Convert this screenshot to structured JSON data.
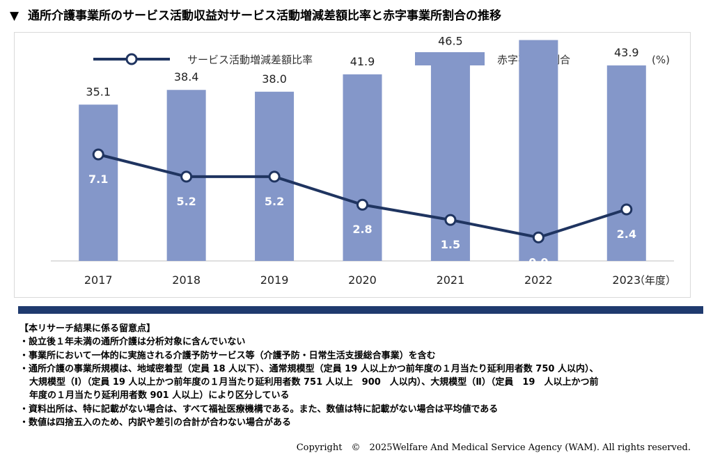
{
  "title": "通所介護事業所のサービス活動収益対サービス活動増減差額比率と赤字事業所割合の推移",
  "title_marker": "▼",
  "chart_data": {
    "type": "bar+line",
    "categories": [
      "2017",
      "2018",
      "2019",
      "2020",
      "2021",
      "2022",
      "2023"
    ],
    "x_unit": "（年度）",
    "y_unit": "(%)",
    "legend_placement": "top",
    "grid": false,
    "series": [
      {
        "name": "赤字事業所割合",
        "type": "bar",
        "values": [
          35.1,
          38.4,
          38.0,
          41.9,
          46.5,
          49.6,
          43.9
        ],
        "color": "#8497c9",
        "ylim": [
          0,
          60
        ]
      },
      {
        "name": "サービス活動増減差額比率",
        "type": "line",
        "values": [
          7.1,
          5.2,
          5.2,
          2.8,
          1.5,
          0.0,
          2.4
        ],
        "color": "#1f3460",
        "ylim": [
          -3,
          14
        ]
      }
    ],
    "colors": {
      "bar": "#8497c9",
      "line": "#1f3460",
      "line_label": "#ffffff"
    }
  },
  "divider_color": "#1f3a6e",
  "notes": {
    "heading": "【本リサーチ結果に係る留意点】",
    "items": [
      "・設立後１年未満の通所介護は分析対象に含んでいない",
      "・事業所において一体的に実施される介護予防サービス等（介護予防・日常生活支援総合事業）を含む",
      "・通所介護の事業所規模は、地域密着型（定員 18 人以下）、通常規模型（定員 19 人以上かつ前年度の１月当たり延利用者数 750 人以内）、",
      "大規模型（Ⅰ）（定員 19 人以上かつ前年度の１月当たり延利用者数 751 人以上　900　人以内）、大規模型（Ⅱ）（定員　19　人以上かつ前",
      "年度の１月当たり延利用者数 901 人以上）により区分している",
      "・資料出所は、特に記載がない場合は、すべて福祉医療機構である。また、数値は特に記載がない場合は平均値である",
      "・数値は四捨五入のため、内訳や差引の合計が合わない場合がある"
    ]
  },
  "copyright": "Copyright　©　2025Welfare And Medical Service Agency (WAM). All rights reserved."
}
